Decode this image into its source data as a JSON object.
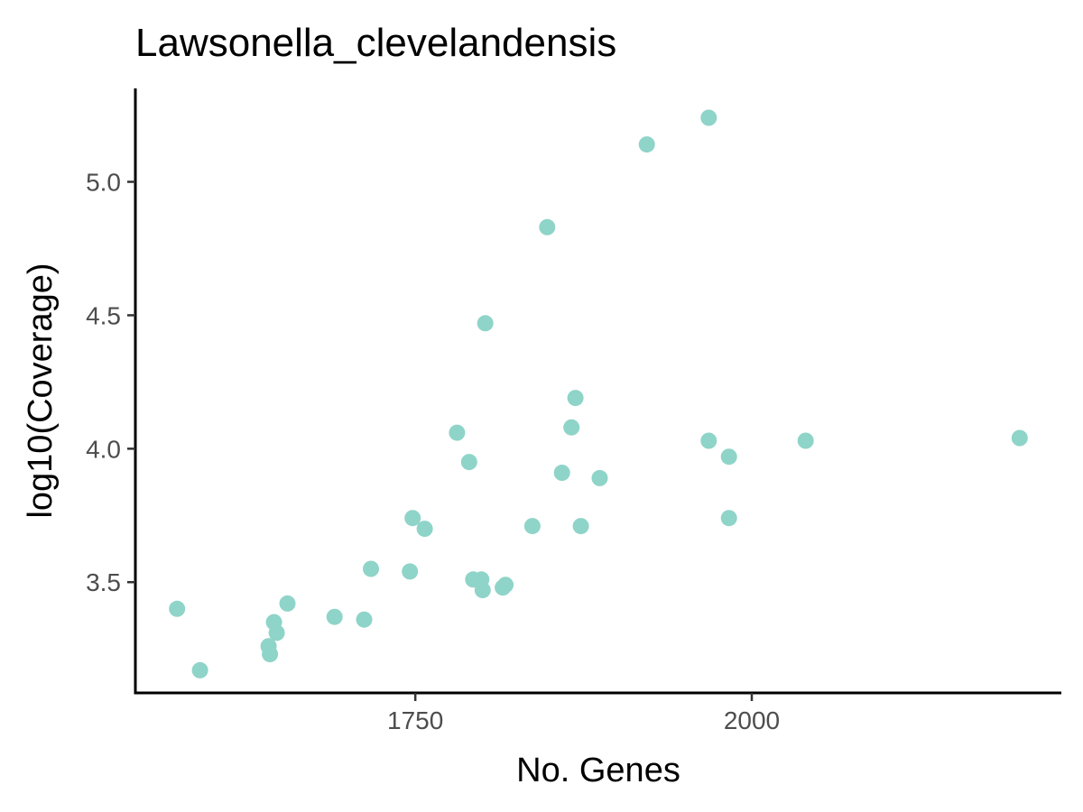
{
  "chart_data": {
    "type": "scatter",
    "title": "Lawsonella_clevelandensis",
    "xlabel": "No. Genes",
    "ylabel": "log10(Coverage)",
    "xlim": [
      1542,
      2230
    ],
    "ylim": [
      3.085,
      5.35
    ],
    "x_ticks": [
      1750,
      2000
    ],
    "x_tick_labels": [
      "1750",
      "2000"
    ],
    "y_ticks": [
      3.5,
      4.0,
      4.5,
      5.0
    ],
    "y_tick_labels": [
      "3.5",
      "4.0",
      "4.5",
      "5.0"
    ],
    "grid": false,
    "point_color": "#8fd4c8",
    "points": [
      {
        "x": 1573,
        "y": 3.4
      },
      {
        "x": 1590,
        "y": 3.17
      },
      {
        "x": 1641,
        "y": 3.26
      },
      {
        "x": 1642,
        "y": 3.23
      },
      {
        "x": 1645,
        "y": 3.35
      },
      {
        "x": 1647,
        "y": 3.31
      },
      {
        "x": 1655,
        "y": 3.42
      },
      {
        "x": 1690,
        "y": 3.37
      },
      {
        "x": 1712,
        "y": 3.36
      },
      {
        "x": 1717,
        "y": 3.55
      },
      {
        "x": 1746,
        "y": 3.54
      },
      {
        "x": 1748,
        "y": 3.74
      },
      {
        "x": 1757,
        "y": 3.7
      },
      {
        "x": 1781,
        "y": 4.06
      },
      {
        "x": 1790,
        "y": 3.95
      },
      {
        "x": 1793,
        "y": 3.51
      },
      {
        "x": 1799,
        "y": 3.51
      },
      {
        "x": 1800,
        "y": 3.47
      },
      {
        "x": 1802,
        "y": 4.47
      },
      {
        "x": 1815,
        "y": 3.48
      },
      {
        "x": 1817,
        "y": 3.49
      },
      {
        "x": 1837,
        "y": 3.71
      },
      {
        "x": 1848,
        "y": 4.83
      },
      {
        "x": 1859,
        "y": 3.91
      },
      {
        "x": 1866,
        "y": 4.08
      },
      {
        "x": 1869,
        "y": 4.19
      },
      {
        "x": 1873,
        "y": 3.71
      },
      {
        "x": 1887,
        "y": 3.89
      },
      {
        "x": 1922,
        "y": 5.14
      },
      {
        "x": 1968,
        "y": 5.24
      },
      {
        "x": 1968,
        "y": 4.03
      },
      {
        "x": 1983,
        "y": 3.97
      },
      {
        "x": 1983,
        "y": 3.74
      },
      {
        "x": 2040,
        "y": 4.03
      },
      {
        "x": 2199,
        "y": 4.04
      }
    ]
  }
}
